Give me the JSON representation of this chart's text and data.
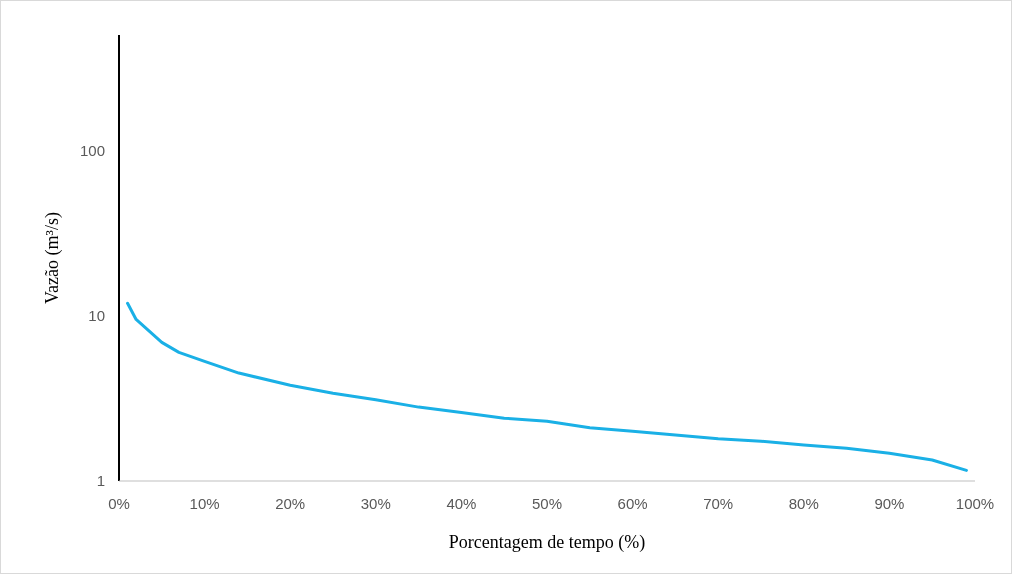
{
  "chart_data": {
    "type": "line",
    "xlabel": "Porcentagem de tempo (%)",
    "ylabel": "Vazão (m³/s)",
    "log": "y",
    "grid": false,
    "marker": "none",
    "line_style": "solid",
    "x": [
      1,
      2,
      5,
      7,
      10,
      14,
      20,
      25,
      30,
      35,
      40,
      45,
      50,
      55,
      60,
      65,
      70,
      75,
      80,
      85,
      90,
      95,
      99
    ],
    "series": [
      {
        "color": "#1ab0e6",
        "values": [
          11.9,
          9.5,
          6.9,
          6.0,
          5.3,
          4.5,
          3.8,
          3.4,
          3.1,
          2.8,
          2.6,
          2.4,
          2.3,
          2.1,
          2.0,
          1.9,
          1.8,
          1.74,
          1.65,
          1.58,
          1.47,
          1.34,
          1.16
        ]
      }
    ],
    "xlim": [
      0,
      100
    ],
    "xticks": [
      {
        "value": 0,
        "label": "0%"
      },
      {
        "value": 10,
        "label": "10%"
      },
      {
        "value": 20,
        "label": "20%"
      },
      {
        "value": 30,
        "label": "30%"
      },
      {
        "value": 40,
        "label": "40%"
      },
      {
        "value": 50,
        "label": "50%"
      },
      {
        "value": 60,
        "label": "60%"
      },
      {
        "value": 70,
        "label": "70%"
      },
      {
        "value": 80,
        "label": "80%"
      },
      {
        "value": 90,
        "label": "90%"
      },
      {
        "value": 100,
        "label": "100%"
      }
    ],
    "ylim": [
      1,
      500
    ],
    "yticks": [
      1,
      10,
      100
    ]
  }
}
